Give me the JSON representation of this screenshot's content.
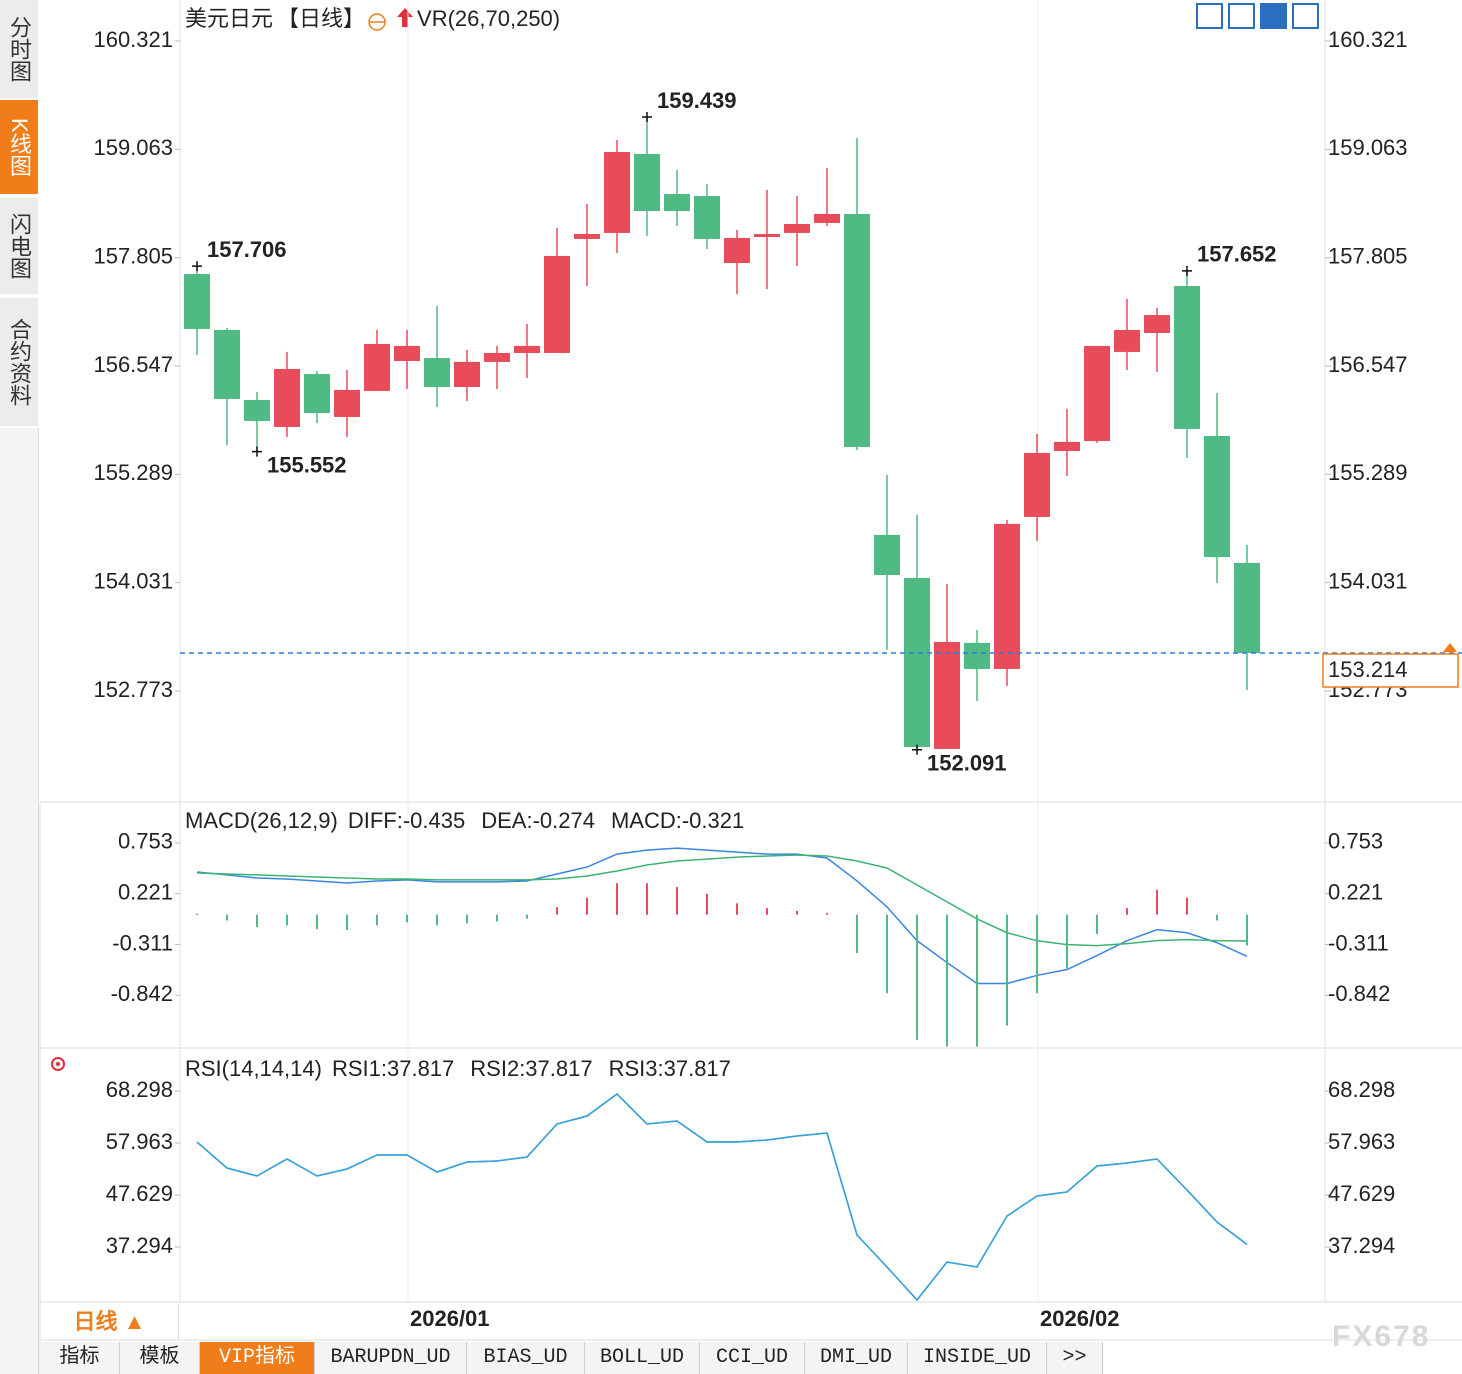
{
  "ui": {
    "sidebar": [
      "分时图",
      "K线图",
      "闪电图",
      "合约资料"
    ],
    "period_button": "日线 ▲",
    "tabs": [
      "指标",
      "模板",
      "VIP指标",
      "BARUPDN_UD",
      "BIAS_UD",
      "BOLL_UD",
      "CCI_UD",
      "DMI_UD",
      "INSIDE_UD",
      ">>"
    ],
    "watermark": "FX678"
  },
  "chart_data": [
    {
      "type": "candlestick",
      "title": "美元日元",
      "period": "【日线】",
      "indicator": "VR(26,70,250)",
      "categories": [
        null,
        null,
        null,
        null,
        null,
        null,
        null,
        "2026/01",
        null,
        null,
        null,
        null,
        null,
        null,
        null,
        null,
        null,
        null,
        null,
        null,
        null,
        null,
        null,
        null,
        null,
        null,
        null,
        null,
        "2026/02",
        null,
        null,
        null,
        null,
        null,
        null,
        null
      ],
      "open": [
        157.615,
        156.965,
        156.152,
        155.839,
        156.454,
        155.955,
        156.257,
        156.605,
        156.64,
        156.303,
        156.594,
        156.698,
        156.698,
        158.022,
        158.092,
        159.009,
        158.544,
        158.521,
        157.743,
        158.045,
        158.092,
        158.208,
        158.312,
        154.585,
        154.086,
        152.1,
        153.331,
        153.029,
        154.794,
        155.56,
        155.676,
        156.71,
        156.93,
        157.476,
        155.734,
        154.26
      ],
      "high": [
        157.706,
        156.988,
        156.245,
        156.71,
        156.489,
        156.501,
        156.965,
        156.965,
        157.244,
        156.733,
        156.78,
        157.035,
        158.15,
        158.428,
        159.171,
        159.439,
        158.823,
        158.66,
        158.126,
        158.591,
        158.521,
        158.846,
        159.195,
        155.282,
        154.817,
        154.016,
        153.482,
        154.759,
        155.758,
        156.048,
        156.78,
        157.325,
        157.221,
        157.652,
        156.234,
        154.469
      ],
      "low": [
        156.675,
        155.63,
        155.552,
        155.723,
        155.885,
        155.723,
        156.257,
        156.28,
        156.071,
        156.141,
        156.28,
        156.408,
        156.698,
        157.476,
        157.86,
        158.057,
        158.173,
        157.906,
        157.383,
        157.441,
        157.708,
        158.173,
        155.572,
        153.25,
        152.091,
        152.1,
        152.657,
        152.832,
        154.515,
        155.27,
        155.653,
        156.501,
        156.478,
        155.479,
        154.027,
        152.785
      ],
      "close": [
        156.977,
        156.164,
        155.909,
        156.512,
        156.001,
        156.269,
        156.803,
        156.78,
        156.303,
        156.594,
        156.698,
        156.78,
        157.825,
        158.08,
        159.032,
        158.347,
        158.347,
        158.022,
        158.034,
        158.08,
        158.196,
        158.312,
        155.607,
        154.12,
        152.123,
        153.342,
        153.029,
        154.713,
        155.537,
        155.665,
        156.78,
        156.965,
        157.139,
        155.816,
        154.329,
        153.214
      ],
      "up_color": "#e84c5a",
      "down_color": "#4fba83",
      "annotations": [
        {
          "index": 0,
          "kind": "high",
          "text": "157.706"
        },
        {
          "index": 2,
          "kind": "low",
          "text": "155.552"
        },
        {
          "index": 15,
          "kind": "high",
          "text": "159.439"
        },
        {
          "index": 24,
          "kind": "low",
          "text": "152.091"
        },
        {
          "index": 33,
          "kind": "high",
          "text": "157.652"
        }
      ],
      "current_price_label": "153.214",
      "current_price_color": "#2f7de1",
      "ylim": [
        151.507,
        160.739
      ],
      "yticks": [
        160.321,
        159.063,
        157.805,
        156.547,
        155.289,
        154.031,
        152.773
      ],
      "grid": false
    },
    {
      "type": "combo",
      "title": "MACD(26,12,9)",
      "series": [
        {
          "name": "DIFF:-0.435",
          "color": "#3a86e0",
          "kind": "line",
          "values": [
            0.448,
            0.417,
            0.385,
            0.375,
            0.354,
            0.333,
            0.354,
            0.365,
            0.344,
            0.344,
            0.344,
            0.354,
            0.427,
            0.5,
            0.635,
            0.677,
            0.698,
            0.677,
            0.656,
            0.635,
            0.635,
            0.594,
            0.354,
            0.083,
            -0.271,
            -0.5,
            -0.719,
            -0.719,
            -0.635,
            -0.573,
            -0.427,
            -0.271,
            -0.156,
            -0.188,
            -0.292,
            -0.435
          ]
        },
        {
          "name": "DEA:-0.274",
          "color": "#3cb371",
          "kind": "line",
          "values": [
            0.438,
            0.427,
            0.417,
            0.406,
            0.396,
            0.385,
            0.375,
            0.375,
            0.365,
            0.365,
            0.365,
            0.365,
            0.375,
            0.406,
            0.458,
            0.521,
            0.563,
            0.583,
            0.604,
            0.615,
            0.625,
            0.615,
            0.563,
            0.49,
            0.313,
            0.135,
            -0.042,
            -0.188,
            -0.271,
            -0.313,
            -0.323,
            -0.302,
            -0.271,
            -0.26,
            -0.271,
            -0.274
          ]
        },
        {
          "name": "MACD:-0.321",
          "color": "#4aa8e8",
          "kind": "bar",
          "up_color": "#e84c5a",
          "down_color": "#4fba83",
          "values": [
            0.01,
            -0.06,
            -0.13,
            -0.11,
            -0.15,
            -0.16,
            -0.11,
            -0.08,
            -0.11,
            -0.09,
            -0.07,
            -0.04,
            0.08,
            0.18,
            0.33,
            0.33,
            0.29,
            0.22,
            0.12,
            0.07,
            0.04,
            0.02,
            -0.4,
            -0.82,
            -1.31,
            -1.38,
            -1.38,
            -1.16,
            -0.82,
            -0.56,
            -0.2,
            0.07,
            0.26,
            0.18,
            -0.06,
            -0.321
          ]
        }
      ],
      "ylim": [
        -1.384,
        1.149
      ],
      "yticks": [
        0.753,
        0.221,
        -0.311,
        -0.842
      ],
      "grid": false
    },
    {
      "type": "line",
      "title": "RSI(14,14,14)",
      "series": [
        {
          "name": "RSI1:37.817",
          "color": "#3aa0e0",
          "values": [
            58.16,
            52.99,
            51.41,
            54.78,
            51.41,
            52.8,
            55.58,
            55.58,
            52.2,
            54.19,
            54.39,
            55.18,
            61.74,
            63.33,
            67.7,
            61.74,
            62.34,
            58.16,
            58.16,
            58.56,
            59.35,
            59.95,
            39.68,
            33.32,
            26.76,
            34.31,
            33.32,
            43.45,
            47.43,
            48.23,
            53.39,
            53.99,
            54.78,
            48.62,
            42.26,
            37.817
          ]
        },
        {
          "name": "RSI2:37.817",
          "color": "#5fc88f",
          "values": [
            58.16,
            52.99,
            51.41,
            54.78,
            51.41,
            52.8,
            55.58,
            55.58,
            52.2,
            54.19,
            54.39,
            55.18,
            61.74,
            63.33,
            67.7,
            61.74,
            62.34,
            58.16,
            58.16,
            58.56,
            59.35,
            59.95,
            39.68,
            33.32,
            26.76,
            34.31,
            33.32,
            43.45,
            47.43,
            48.23,
            53.39,
            53.99,
            54.78,
            48.62,
            42.26,
            37.817
          ]
        },
        {
          "name": "RSI3:37.817",
          "color": "#5aaee8",
          "values": [
            58.16,
            52.99,
            51.41,
            54.78,
            51.41,
            52.8,
            55.58,
            55.58,
            52.2,
            54.19,
            54.39,
            55.18,
            61.74,
            63.33,
            67.7,
            61.74,
            62.34,
            58.16,
            58.16,
            58.56,
            59.35,
            59.95,
            39.68,
            33.32,
            26.76,
            34.31,
            33.32,
            43.45,
            47.43,
            48.23,
            53.39,
            53.99,
            54.78,
            48.62,
            42.26,
            37.817
          ]
        }
      ],
      "ylim": [
        26.36,
        76.45
      ],
      "yticks": [
        68.298,
        57.963,
        47.629,
        37.294
      ],
      "grid": false
    }
  ]
}
